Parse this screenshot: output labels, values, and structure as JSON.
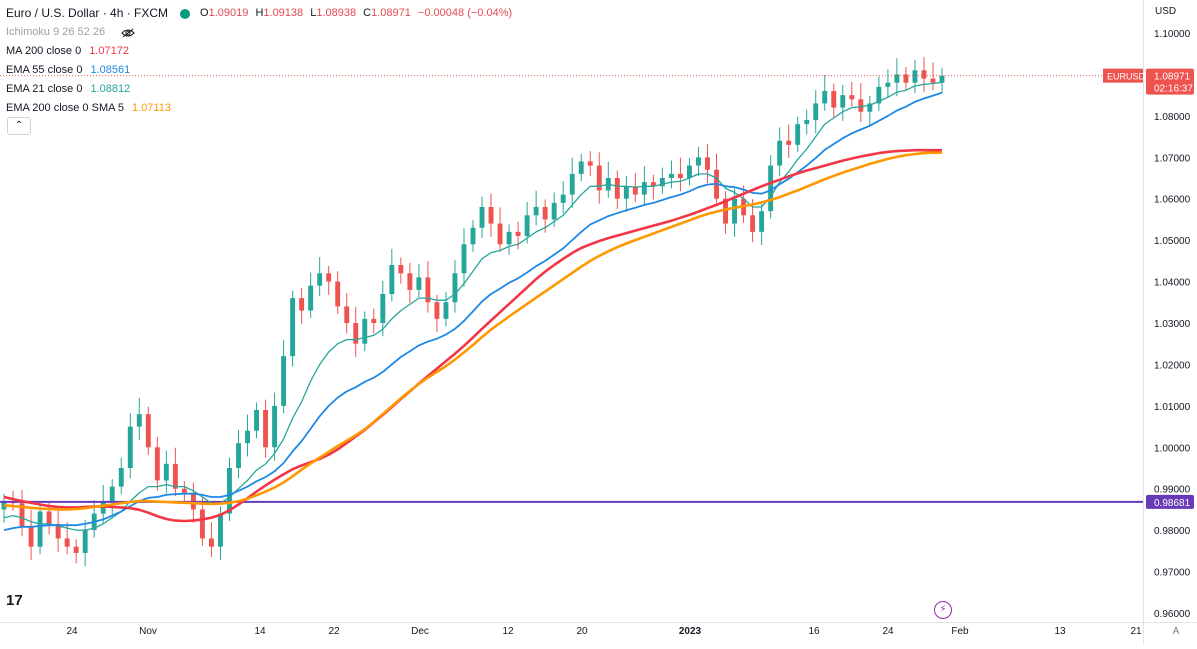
{
  "symbol": {
    "title": "Euro / U.S. Dollar · 4h · FXCM",
    "open_label": "O",
    "open": "1.09019",
    "high_label": "H",
    "high": "1.09138",
    "low_label": "L",
    "low": "1.08938",
    "close_label": "C",
    "close": "1.08971",
    "change": "−0.00048 (−0.04%)"
  },
  "indicators": [
    {
      "name": "Ichimoku 9 26 52 26",
      "value": "",
      "color": "#9aa0aa"
    },
    {
      "name": "MA 200 close 0",
      "value": "1.07172",
      "color": "#f23645"
    },
    {
      "name": "EMA 55 close 0",
      "value": "1.08561",
      "color": "#1e88e5"
    },
    {
      "name": "EMA 21 close 0",
      "value": "1.08812",
      "color": "#26a69a"
    },
    {
      "name": "EMA 200 close 0 SMA 5",
      "value": "1.07113",
      "color": "#ff9800"
    }
  ],
  "price_axis": {
    "currency": "USD",
    "last_price_label": "EURUSD",
    "last_price": "1.08971",
    "countdown": "02:16:37",
    "hline_price": "0.98681"
  },
  "colors": {
    "up": "#26a69a",
    "down": "#ef5350",
    "ma200": "#f23645",
    "ema55": "#1e88e5",
    "ema21": "#26a69a",
    "ema200": "#ff9800",
    "hline": "#673ab7",
    "last_price_bg": "#ef5350"
  },
  "icons": [
    "eye-slash-icon",
    "chevron-up-icon",
    "tradingview-logo-icon",
    "lightning-icon",
    "auto-scale-icon"
  ],
  "chart_data": {
    "type": "line",
    "title": "Euro / U.S. Dollar · 4h · FXCM",
    "xlabel": "",
    "ylabel": "",
    "x_ticks": [
      "24",
      "Nov",
      "14",
      "22",
      "Dec",
      "12",
      "20",
      "2023",
      "16",
      "24",
      "Feb",
      "13",
      "21"
    ],
    "y_ticks": [
      "0.96000",
      "0.97000",
      "0.98000",
      "0.99000",
      "1.00000",
      "1.01000",
      "1.02000",
      "1.03000",
      "1.04000",
      "1.05000",
      "1.06000",
      "1.07000",
      "1.08000",
      "1.09000",
      "1.10000"
    ],
    "ylim": [
      0.9597,
      1.1018
    ],
    "horizontal_line": 0.98681,
    "last_price": 1.08971,
    "grid": false,
    "series": [
      {
        "name": "EURUSD",
        "values": [
          0.987,
          0.9865,
          0.981,
          0.976,
          0.9845,
          0.9815,
          0.978,
          0.976,
          0.9745,
          0.98,
          0.984,
          0.987,
          0.9905,
          0.995,
          1.005,
          1.008,
          1.0,
          0.992,
          0.996,
          0.99,
          0.989,
          0.985,
          0.978,
          0.976,
          0.984,
          0.995,
          1.001,
          1.004,
          1.009,
          1.0,
          1.01,
          1.022,
          1.036,
          1.033,
          1.039,
          1.042,
          1.04,
          1.034,
          1.03,
          1.025,
          1.031,
          1.03,
          1.037,
          1.044,
          1.042,
          1.038,
          1.041,
          1.035,
          1.031,
          1.035,
          1.042,
          1.049,
          1.053,
          1.058,
          1.054,
          1.049,
          1.052,
          1.051,
          1.056,
          1.058,
          1.055,
          1.059,
          1.061,
          1.066,
          1.069,
          1.068,
          1.062,
          1.065,
          1.06,
          1.063,
          1.061,
          1.064,
          1.063,
          1.065,
          1.066,
          1.065,
          1.068,
          1.07,
          1.067,
          1.06,
          1.054,
          1.06,
          1.056,
          1.052,
          1.057,
          1.068,
          1.074,
          1.073,
          1.078,
          1.079,
          1.083,
          1.086,
          1.082,
          1.085,
          1.084,
          1.081,
          1.083,
          1.087,
          1.088,
          1.09,
          1.088,
          1.091,
          1.089,
          1.088,
          1.0897
        ]
      },
      {
        "name": "EMA 21",
        "values": [
          0.983,
          0.9835,
          0.983,
          0.982,
          0.9815,
          0.9815,
          0.981,
          0.9805,
          0.98,
          0.98,
          0.9805,
          0.9815,
          0.983,
          0.9845,
          0.987,
          0.989,
          0.9905,
          0.9905,
          0.991,
          0.9905,
          0.9905,
          0.9895,
          0.988,
          0.9865,
          0.9865,
          0.988,
          0.99,
          0.992,
          0.9945,
          0.996,
          0.9985,
          1.002,
          1.007,
          1.011,
          1.016,
          1.02,
          1.023,
          1.025,
          1.026,
          1.026,
          1.0265,
          1.027,
          1.0285,
          1.031,
          1.033,
          1.0345,
          1.036,
          1.036,
          1.0355,
          1.0355,
          1.037,
          1.0395,
          1.0425,
          1.0455,
          1.047,
          1.0475,
          1.0485,
          1.049,
          1.0505,
          1.052,
          1.053,
          1.0545,
          1.056,
          1.0585,
          1.061,
          1.063,
          1.063,
          1.0635,
          1.063,
          1.063,
          1.0628,
          1.063,
          1.063,
          1.0635,
          1.064,
          1.0642,
          1.065,
          1.066,
          1.066,
          1.065,
          1.0625,
          1.0615,
          1.06,
          1.058,
          1.058,
          1.0605,
          1.064,
          1.0665,
          1.0695,
          1.072,
          1.075,
          1.078,
          1.0795,
          1.081,
          1.082,
          1.0822,
          1.0826,
          1.0835,
          1.0845,
          1.0857,
          1.0862,
          1.0872,
          1.0876,
          1.0878,
          1.0881
        ]
      },
      {
        "name": "EMA 55",
        "values": [
          0.98,
          0.9805,
          0.9808,
          0.9808,
          0.981,
          0.9812,
          0.9812,
          0.9812,
          0.9812,
          0.9815,
          0.982,
          0.9826,
          0.9835,
          0.9845,
          0.9858,
          0.987,
          0.9878,
          0.988,
          0.9885,
          0.9887,
          0.9888,
          0.9888,
          0.9885,
          0.988,
          0.988,
          0.9885,
          0.9895,
          0.9905,
          0.9918,
          0.9928,
          0.9942,
          0.9962,
          0.999,
          1.0015,
          1.0045,
          1.0075,
          1.01,
          1.012,
          1.0135,
          1.0145,
          1.0158,
          1.0168,
          1.0182,
          1.02,
          1.0218,
          1.0232,
          1.0246,
          1.0255,
          1.0262,
          1.0272,
          1.0286,
          1.0305,
          1.0328,
          1.0352,
          1.037,
          1.0383,
          1.0397,
          1.0408,
          1.0422,
          1.0437,
          1.045,
          1.0465,
          1.048,
          1.05,
          1.052,
          1.0538,
          1.0548,
          1.0558,
          1.0565,
          1.0572,
          1.0578,
          1.0585,
          1.059,
          1.0597,
          1.0604,
          1.061,
          1.0618,
          1.0628,
          1.0634,
          1.0636,
          1.063,
          1.0628,
          1.0622,
          1.0614,
          1.0612,
          1.062,
          1.0635,
          1.0648,
          1.0664,
          1.068,
          1.0698,
          1.0718,
          1.0732,
          1.0746,
          1.0758,
          1.0767,
          1.0776,
          1.0788,
          1.08,
          1.0813,
          1.0822,
          1.0834,
          1.0842,
          1.0849,
          1.0856
        ]
      },
      {
        "name": "MA 200",
        "values": [
          0.988,
          0.9875,
          0.987,
          0.9866,
          0.9862,
          0.9858,
          0.9856,
          0.9855,
          0.9855,
          0.9856,
          0.9857,
          0.9857,
          0.9856,
          0.9855,
          0.9853,
          0.9849,
          0.9842,
          0.9834,
          0.9827,
          0.9823,
          0.9822,
          0.9823,
          0.9826,
          0.983,
          0.9837,
          0.9848,
          0.9862,
          0.9877,
          0.9893,
          0.9908,
          0.9922,
          0.9935,
          0.9947,
          0.9956,
          0.9964,
          0.9972,
          0.9982,
          0.9995,
          1.001,
          1.0026,
          1.0042,
          1.006,
          1.0078,
          1.0097,
          1.0116,
          1.0135,
          1.0154,
          1.0172,
          1.019,
          1.0208,
          1.0226,
          1.0245,
          1.0265,
          1.0286,
          1.0306,
          1.0326,
          1.0346,
          1.0366,
          1.0386,
          1.0406,
          1.0424,
          1.044,
          1.0455,
          1.0469,
          1.0481,
          1.049,
          1.0498,
          1.0505,
          1.0511,
          1.0517,
          1.0523,
          1.0529,
          1.0535,
          1.0541,
          1.0547,
          1.0554,
          1.0561,
          1.0569,
          1.0577,
          1.0585,
          1.0594,
          1.0603,
          1.0612,
          1.0621,
          1.063,
          1.0638,
          1.0646,
          1.0654,
          1.0661,
          1.0668,
          1.0674,
          1.068,
          1.0686,
          1.0692,
          1.0697,
          1.0702,
          1.0706,
          1.071,
          1.0713,
          1.0715,
          1.0716,
          1.0717,
          1.0717,
          1.0717,
          1.0717
        ]
      },
      {
        "name": "EMA 200 SMA 5",
        "values": [
          0.986,
          0.9858,
          0.9856,
          0.9854,
          0.9852,
          0.9851,
          0.985,
          0.985,
          0.9851,
          0.9853,
          0.9856,
          0.9859,
          0.9862,
          0.9865,
          0.9868,
          0.987,
          0.987,
          0.9869,
          0.9868,
          0.9867,
          0.9866,
          0.9865,
          0.9864,
          0.9863,
          0.9864,
          0.9866,
          0.987,
          0.9876,
          0.9884,
          0.9893,
          0.9903,
          0.9915,
          0.993,
          0.9946,
          0.9961,
          0.9975,
          0.9989,
          1.0003,
          1.0016,
          1.0029,
          1.0044,
          1.0061,
          1.008,
          1.0099,
          1.0118,
          1.0136,
          1.0153,
          1.0168,
          1.0182,
          1.0196,
          1.0212,
          1.0229,
          1.0247,
          1.0266,
          1.0284,
          1.03,
          1.0316,
          1.0331,
          1.0346,
          1.0361,
          1.0376,
          1.0391,
          1.0406,
          1.0421,
          1.0436,
          1.045,
          1.0462,
          1.0473,
          1.0483,
          1.0492,
          1.05,
          1.0508,
          1.0516,
          1.0524,
          1.0532,
          1.054,
          1.0548,
          1.0556,
          1.0563,
          1.0569,
          1.0574,
          1.0578,
          1.0582,
          1.0586,
          1.0591,
          1.0597,
          1.0604,
          1.0612,
          1.062,
          1.0629,
          1.0638,
          1.0647,
          1.0655,
          1.0663,
          1.067,
          1.0677,
          1.0684,
          1.069,
          1.0696,
          1.0701,
          1.0705,
          1.0708,
          1.071,
          1.0711,
          1.0711
        ]
      }
    ]
  }
}
